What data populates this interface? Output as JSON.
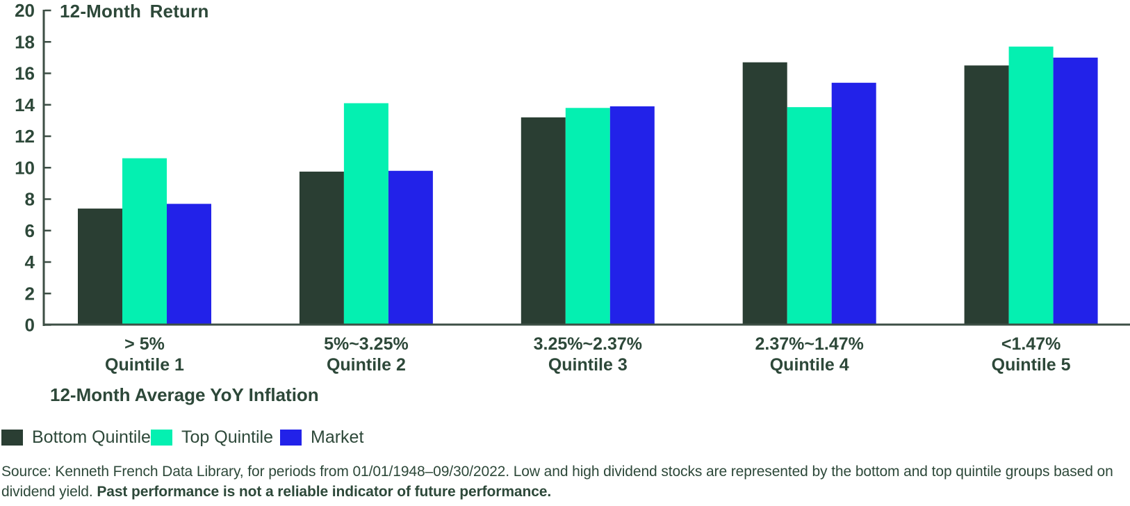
{
  "chart_data": {
    "type": "bar",
    "title": "12-Month Return",
    "xlabel": "12-Month Average YoY Inflation",
    "ylabel": "",
    "ylim": [
      0,
      20
    ],
    "ytick_step": 2,
    "grid": false,
    "legend_position": "bottom-left",
    "text_color": "#2D4839",
    "axis_color": "#3D4F45",
    "categories": [
      "> 5%",
      "5%~3.25%",
      "3.25%~2.37%",
      "2.37%~1.47%",
      "<1.47%"
    ],
    "quintile_labels": [
      "Quintile 1",
      "Quintile 2",
      "Quintile 3",
      "Quintile 4",
      "Quintile 5"
    ],
    "series": [
      {
        "name": "Bottom Quintile",
        "color": "#2A3E33",
        "values": [
          7.4,
          9.75,
          13.2,
          16.7,
          16.5
        ]
      },
      {
        "name": "Top Quintile",
        "color": "#04F0B1",
        "values": [
          10.6,
          14.1,
          13.8,
          13.85,
          17.7
        ]
      },
      {
        "name": "Market",
        "color": "#2222E9",
        "values": [
          7.7,
          9.8,
          13.9,
          15.4,
          17.0
        ]
      }
    ]
  },
  "footer": {
    "line1": "Source: Kenneth French Data Library, for periods from 01/01/1948–09/30/2022. Low and high dividend stocks are represented by the bottom and top quintile groups based on",
    "line2_regular": "dividend yield. ",
    "line2_bold": "Past performance is not a reliable indicator of future performance."
  }
}
